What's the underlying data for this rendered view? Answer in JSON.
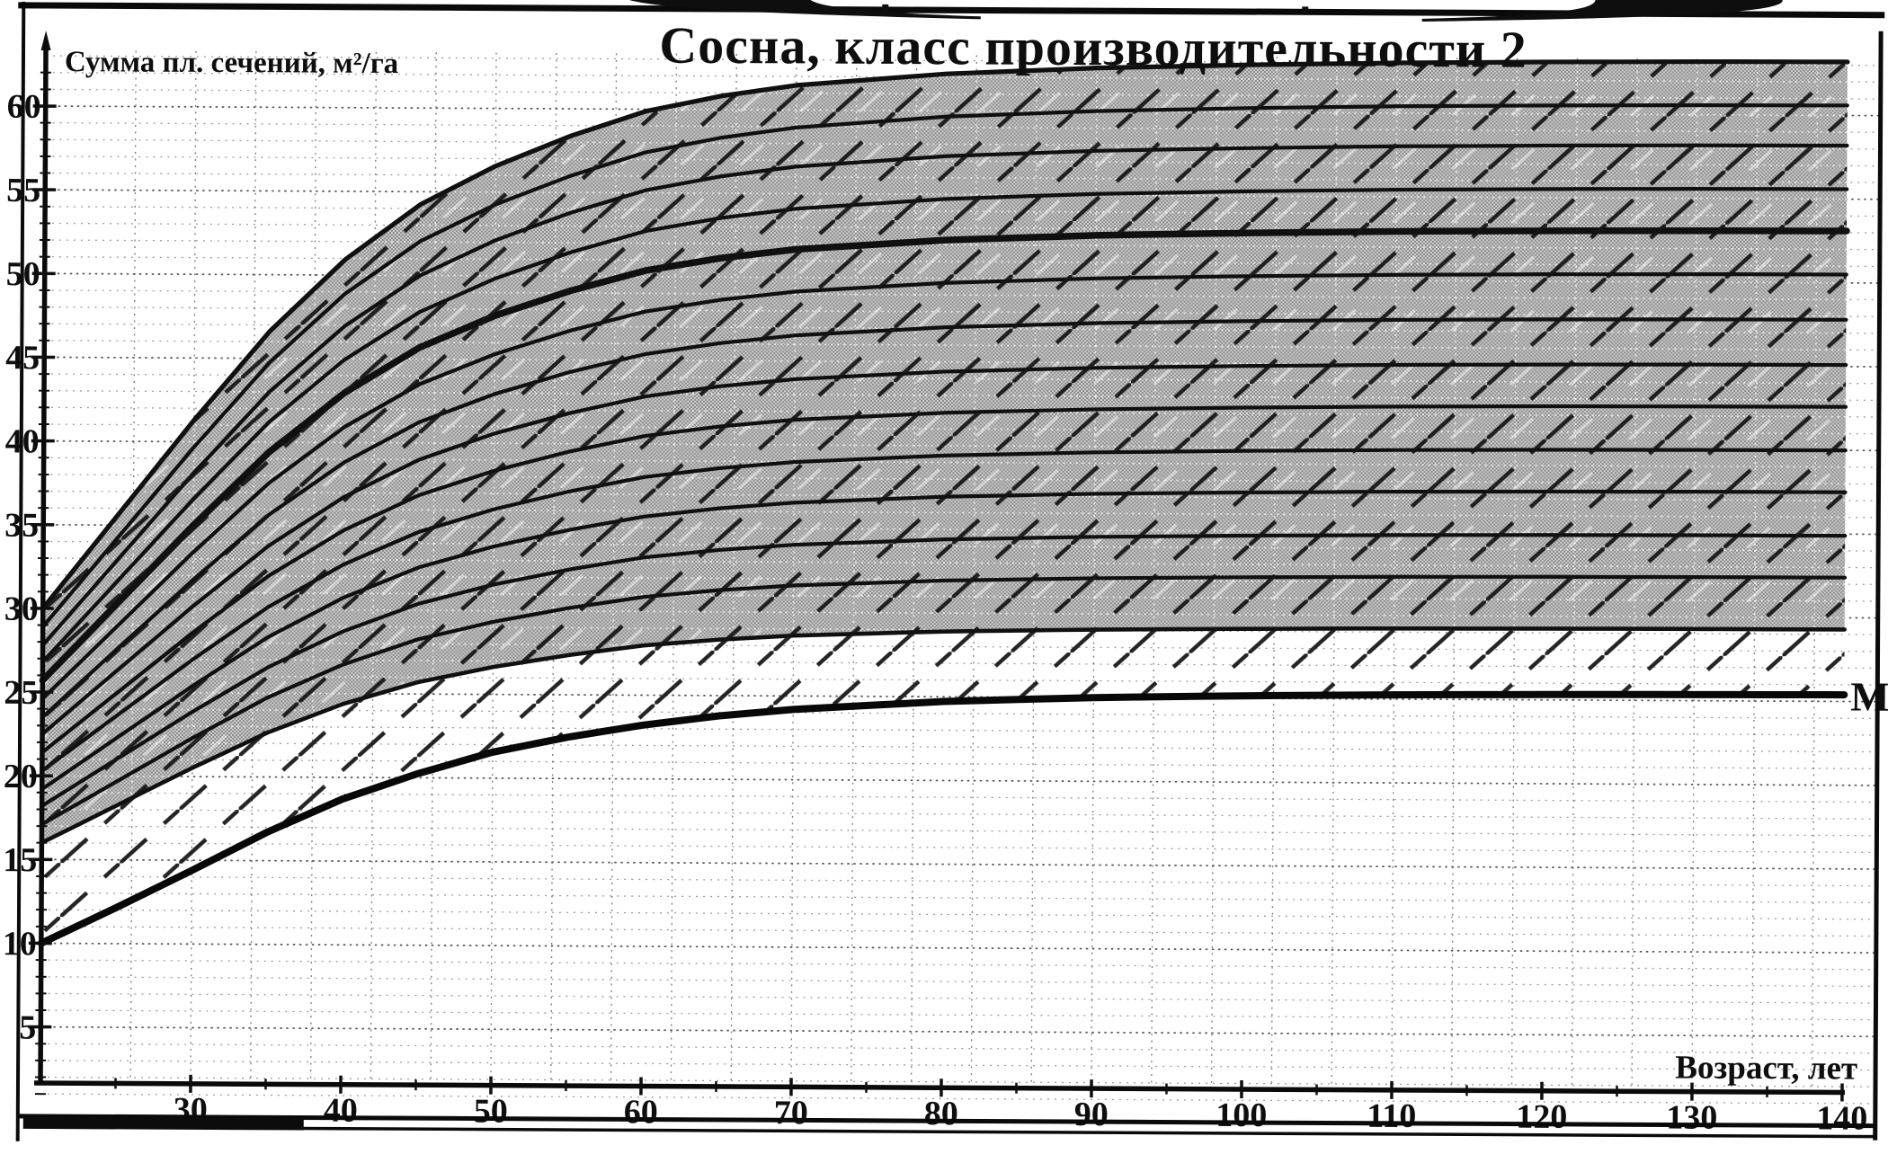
{
  "page": {
    "top_text_fragment": "( )"
  },
  "chart_data": {
    "type": "line",
    "title": "Сосна, класс производительности 2",
    "y_axis_label": "Сумма пл. сечений, м²/га",
    "x_axis_label": "Возраст, лет",
    "x_range": [
      20,
      140
    ],
    "y_range": [
      0,
      63
    ],
    "x_major_ticks": [
      30,
      40,
      50,
      60,
      70,
      80,
      90,
      100,
      110,
      120,
      130,
      140
    ],
    "x_minor_tick_step": 5,
    "y_major_ticks": [
      5,
      10,
      15,
      20,
      25,
      30,
      35,
      40,
      45,
      50,
      55,
      60
    ],
    "y_minor_tick_step": 1,
    "grid": {
      "style": "dotted",
      "h_line_step": 1,
      "h_major_step": 5,
      "v_line_start": 26,
      "v_line_step": 4,
      "v_line_end": 138
    },
    "series_shape": {
      "age_knots": [
        20,
        25,
        30,
        35,
        40,
        45,
        50,
        55,
        60,
        65,
        70,
        80,
        90,
        100,
        110,
        120,
        130,
        140
      ],
      "band_fraction": [
        0,
        0.17,
        0.34,
        0.5,
        0.63,
        0.73,
        0.8,
        0.855,
        0.9,
        0.928,
        0.948,
        0.97,
        0.982,
        0.989,
        0.994,
        0.997,
        0.999,
        1.0
      ],
      "m_fraction": [
        0,
        0.14,
        0.285,
        0.435,
        0.565,
        0.665,
        0.75,
        0.81,
        0.858,
        0.895,
        0.922,
        0.956,
        0.974,
        0.984,
        0.991,
        0.995,
        0.998,
        1.0
      ]
    },
    "density_band_curves": [
      {
        "g20": 16.0,
        "g140": 29.3,
        "role": "band-bottom-edge"
      },
      {
        "g20": 17.1,
        "g140": 32.4,
        "role": "normal"
      },
      {
        "g20": 18.2,
        "g140": 34.9,
        "role": "normal"
      },
      {
        "g20": 19.2,
        "g140": 37.5,
        "role": "normal"
      },
      {
        "g20": 20.3,
        "g140": 40.0,
        "role": "normal"
      },
      {
        "g20": 21.4,
        "g140": 42.6,
        "role": "normal"
      },
      {
        "g20": 22.5,
        "g140": 45.1,
        "role": "normal"
      },
      {
        "g20": 23.5,
        "g140": 47.8,
        "role": "normal"
      },
      {
        "g20": 24.6,
        "g140": 50.5,
        "role": "normal"
      },
      {
        "g20": 25.7,
        "g140": 53.1,
        "role": "emphasis"
      },
      {
        "g20": 26.8,
        "g140": 55.6,
        "role": "normal"
      },
      {
        "g20": 27.8,
        "g140": 58.2,
        "role": "normal"
      },
      {
        "g20": 28.9,
        "g140": 60.6,
        "role": "normal"
      },
      {
        "g20": 30.0,
        "g140": 63.2,
        "role": "band-top-edge"
      }
    ],
    "marginal_curve": {
      "label": "M",
      "g20": 10.0,
      "g140": 25.4
    },
    "hatching": {
      "pattern": "diagonal-dashed",
      "direction": "up-right"
    },
    "colors": {
      "ink": "#101010",
      "grid_dot": "#4f4f4f",
      "band_gray_dark": "#8f8f8f",
      "band_gray_light": "#c9c9c9",
      "paper": "#ffffff"
    }
  }
}
